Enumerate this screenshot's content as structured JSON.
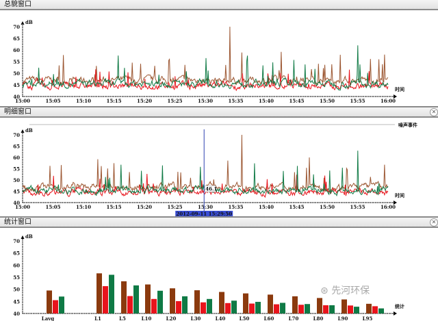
{
  "panels": {
    "overview": {
      "title": "总貌窗口"
    },
    "detail": {
      "title": "明细窗口",
      "event_label": "噪声事件",
      "cursor_value": "46.1",
      "cursor_time": "2012-09-11 15:29:50"
    },
    "stats": {
      "title": "统计窗口"
    }
  },
  "close_icon": "close-circle-icon",
  "watermark": "先河环保",
  "series_colors": {
    "brown": "#8b3a0e",
    "red": "#e8141c",
    "green": "#0f7a45"
  },
  "chart_data": [
    {
      "type": "line",
      "title": "",
      "ylabel": "dB",
      "xlabel": "时间",
      "ylim": [
        40,
        70
      ],
      "yticks": [
        40,
        45,
        50,
        55,
        60,
        65,
        70
      ],
      "xticks": [
        "15:00",
        "15:05",
        "15:10",
        "15:15",
        "15:20",
        "15:25",
        "15:30",
        "15:35",
        "15:40",
        "15:45",
        "15:50",
        "15:55",
        "16:00"
      ],
      "series": [
        {
          "color": "#8b3a0e",
          "baseline": 47,
          "peak": {
            "x": "15:34",
            "y": 70
          }
        },
        {
          "color": "#e8141c",
          "baseline": 44.5
        },
        {
          "color": "#0f7a45",
          "baseline": 45.5,
          "peak": {
            "x": "15:55",
            "y": 62
          }
        }
      ]
    },
    {
      "type": "line",
      "title": "",
      "ylabel": "dB",
      "xlabel": "时间",
      "ylim": [
        40,
        70
      ],
      "yticks": [
        40,
        45,
        50,
        55,
        60,
        65,
        70
      ],
      "xticks": [
        "15:00",
        "15:05",
        "15:10",
        "15:15",
        "15:20",
        "15:25",
        "15:30",
        "15:35",
        "15:40",
        "15:45",
        "15:50",
        "15:55",
        "16:00"
      ],
      "series": [
        {
          "color": "#8b3a0e",
          "baseline": 47,
          "peak": {
            "x": "15:36",
            "y": 70
          }
        },
        {
          "color": "#e8141c",
          "baseline": 44.5
        },
        {
          "color": "#0f7a45",
          "baseline": 45.5,
          "peak": {
            "x": "15:55",
            "y": 63
          }
        }
      ]
    },
    {
      "type": "bar",
      "title": "",
      "ylabel": "dB",
      "xlabel": "统计",
      "ylim": [
        40,
        70
      ],
      "yticks": [
        40,
        45,
        50,
        55,
        60,
        65,
        70
      ],
      "categories": [
        "Lavg",
        "L1",
        "L5",
        "L10",
        "L20",
        "L30",
        "L40",
        "L50",
        "L60",
        "L70",
        "L80",
        "L90",
        "L95"
      ],
      "series": [
        {
          "color": "#8b3a0e",
          "values": [
            49.5,
            56.6,
            53.3,
            52.0,
            50.4,
            49.6,
            48.9,
            48.3,
            47.8,
            47.1,
            46.4,
            45.8,
            44.0
          ]
        },
        {
          "color": "#e8141c",
          "values": [
            45.5,
            51.3,
            47.2,
            46.0,
            45.1,
            44.6,
            44.3,
            44.1,
            43.8,
            43.6,
            43.4,
            43.3,
            43.0
          ]
        },
        {
          "color": "#0f7a45",
          "values": [
            47.0,
            56.0,
            51.6,
            49.4,
            47.1,
            46.0,
            45.3,
            44.8,
            44.4,
            43.9,
            43.4,
            42.8,
            42.1
          ]
        }
      ]
    }
  ]
}
